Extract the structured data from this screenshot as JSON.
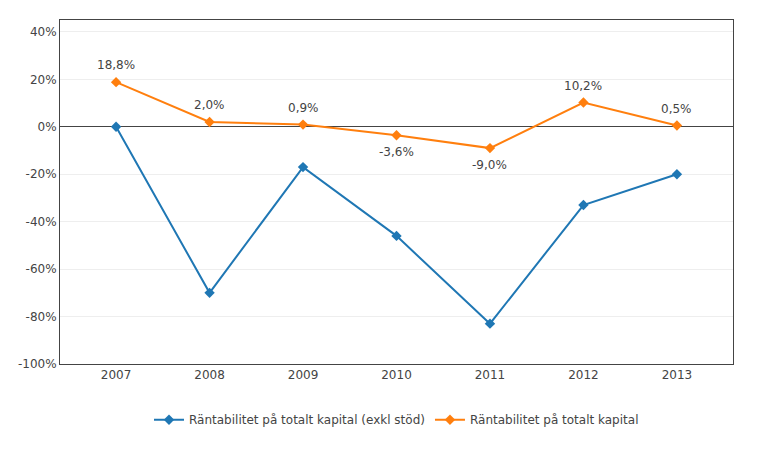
{
  "chart_data": {
    "type": "line",
    "x": [
      2007,
      2008,
      2009,
      2010,
      2011,
      2012,
      2013
    ],
    "series": [
      {
        "name": "Räntabilitet på totalt kapital (exkl stöd)",
        "marker": "diamond",
        "values": [
          0.0,
          -0.7,
          -0.17,
          -0.46,
          -0.83,
          -0.33,
          -0.2
        ]
      },
      {
        "name": "Räntabilitet på totalt kapital",
        "marker": "diamond",
        "data_labels": true,
        "values": [
          0.188,
          0.02,
          0.009,
          -0.036,
          -0.09,
          0.102,
          0.005
        ],
        "value_labels": [
          "18,8%",
          "2,0%",
          "0,9%",
          "-3,6%",
          "-9,0%",
          "10,2%",
          "0,5%"
        ]
      }
    ],
    "xlim": [
      2006.4,
      2013.6
    ],
    "xticks": [
      2007,
      2008,
      2009,
      2010,
      2011,
      2012,
      2013
    ],
    "ylim": [
      -1.0,
      0.45
    ],
    "yticks": [
      {
        "value": -1.0,
        "label": "-100%"
      },
      {
        "value": -0.8,
        "label": "-80%"
      },
      {
        "value": -0.6,
        "label": "-60%"
      },
      {
        "value": -0.4,
        "label": "-40%"
      },
      {
        "value": -0.2,
        "label": "-20%"
      },
      {
        "value": 0.0,
        "label": "0%"
      },
      {
        "value": 0.2,
        "label": "20%"
      },
      {
        "value": 0.4,
        "label": "40%"
      }
    ],
    "grid": true,
    "legend": "bottom"
  }
}
